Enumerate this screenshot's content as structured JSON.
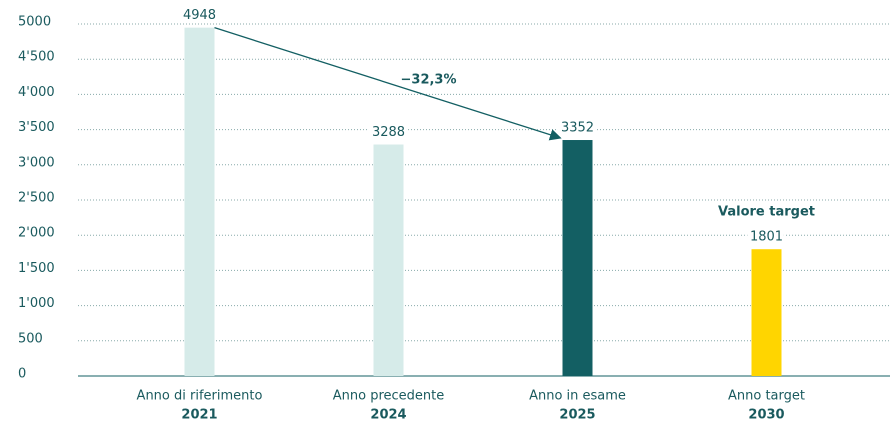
{
  "chart_data": {
    "type": "bar",
    "categories": [
      "Anno di riferimento",
      "Anno precedente",
      "Anno in esame",
      "Anno target"
    ],
    "years": [
      "2021",
      "2024",
      "2025",
      "2030"
    ],
    "values": [
      4948,
      3288,
      3352,
      1801
    ],
    "colors": [
      "#d6ebe9",
      "#d6ebe9",
      "#135f63",
      "#ffd500"
    ],
    "ylim": [
      0,
      5000
    ],
    "yticks": [
      0,
      500,
      {
        "value": 1000,
        "label": "1'000"
      },
      {
        "value": 1500,
        "label": "1'500"
      },
      {
        "value": 2000,
        "label": "2'000"
      },
      {
        "value": 2500,
        "label": "2'500"
      },
      {
        "value": 3000,
        "label": "3'000"
      },
      {
        "value": 3500,
        "label": "3'500"
      },
      {
        "value": 4000,
        "label": "4'000"
      },
      {
        "value": 4500,
        "label": "4'500"
      },
      5000
    ],
    "grid": true,
    "change_annotation": "−32,3%",
    "target_annotation": "Valore target"
  }
}
